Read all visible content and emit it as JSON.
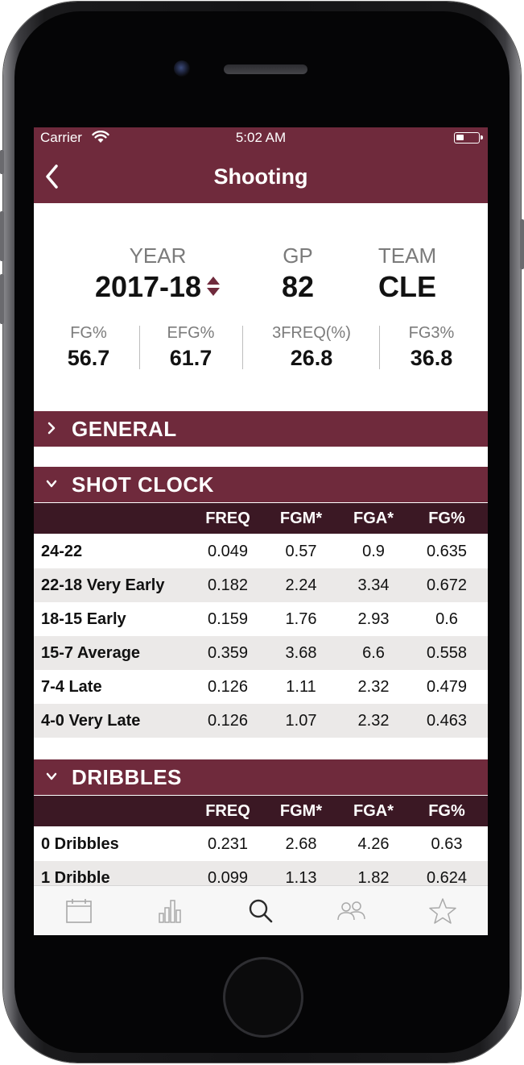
{
  "status": {
    "carrier": "Carrier",
    "time": "5:02 AM"
  },
  "nav": {
    "title": "Shooting"
  },
  "summary": {
    "year_label": "YEAR",
    "year_value": "2017-18",
    "gp_label": "GP",
    "gp_value": "82",
    "team_label": "TEAM",
    "team_value": "CLE"
  },
  "stats": [
    {
      "label": "FG%",
      "value": "56.7"
    },
    {
      "label": "EFG%",
      "value": "61.7"
    },
    {
      "label": "3FREQ(%)",
      "value": "26.8"
    },
    {
      "label": "FG3%",
      "value": "36.8"
    }
  ],
  "sections": {
    "general": {
      "title": "GENERAL"
    },
    "shot_clock": {
      "title": "SHOT CLOCK",
      "columns": [
        "FREQ",
        "FGM*",
        "FGA*",
        "FG%"
      ],
      "rows": [
        {
          "name": "24-22",
          "values": [
            "0.049",
            "0.57",
            "0.9",
            "0.635"
          ]
        },
        {
          "name": "22-18 Very Early",
          "values": [
            "0.182",
            "2.24",
            "3.34",
            "0.672"
          ]
        },
        {
          "name": "18-15 Early",
          "values": [
            "0.159",
            "1.76",
            "2.93",
            "0.6"
          ]
        },
        {
          "name": "15-7 Average",
          "values": [
            "0.359",
            "3.68",
            "6.6",
            "0.558"
          ]
        },
        {
          "name": "7-4 Late",
          "values": [
            "0.126",
            "1.11",
            "2.32",
            "0.479"
          ]
        },
        {
          "name": "4-0 Very Late",
          "values": [
            "0.126",
            "1.07",
            "2.32",
            "0.463"
          ]
        }
      ]
    },
    "dribbles": {
      "title": "DRIBBLES",
      "columns": [
        "FREQ",
        "FGM*",
        "FGA*",
        "FG%"
      ],
      "rows": [
        {
          "name": "0 Dribbles",
          "values": [
            "0.231",
            "2.68",
            "4.26",
            "0.63"
          ]
        },
        {
          "name": "1 Dribble",
          "values": [
            "0.099",
            "1.13",
            "1.82",
            "0.624"
          ]
        }
      ]
    }
  },
  "tabbar": {
    "items": [
      "calendar-icon",
      "bar-chart-icon",
      "search-icon",
      "players-icon",
      "star-icon"
    ],
    "active": 2
  },
  "colors": {
    "brand": "#6f2a3c",
    "header_dark": "#3b1824",
    "alt_row": "#ebe9e8",
    "sort_arrow": "#6f2a3c"
  }
}
